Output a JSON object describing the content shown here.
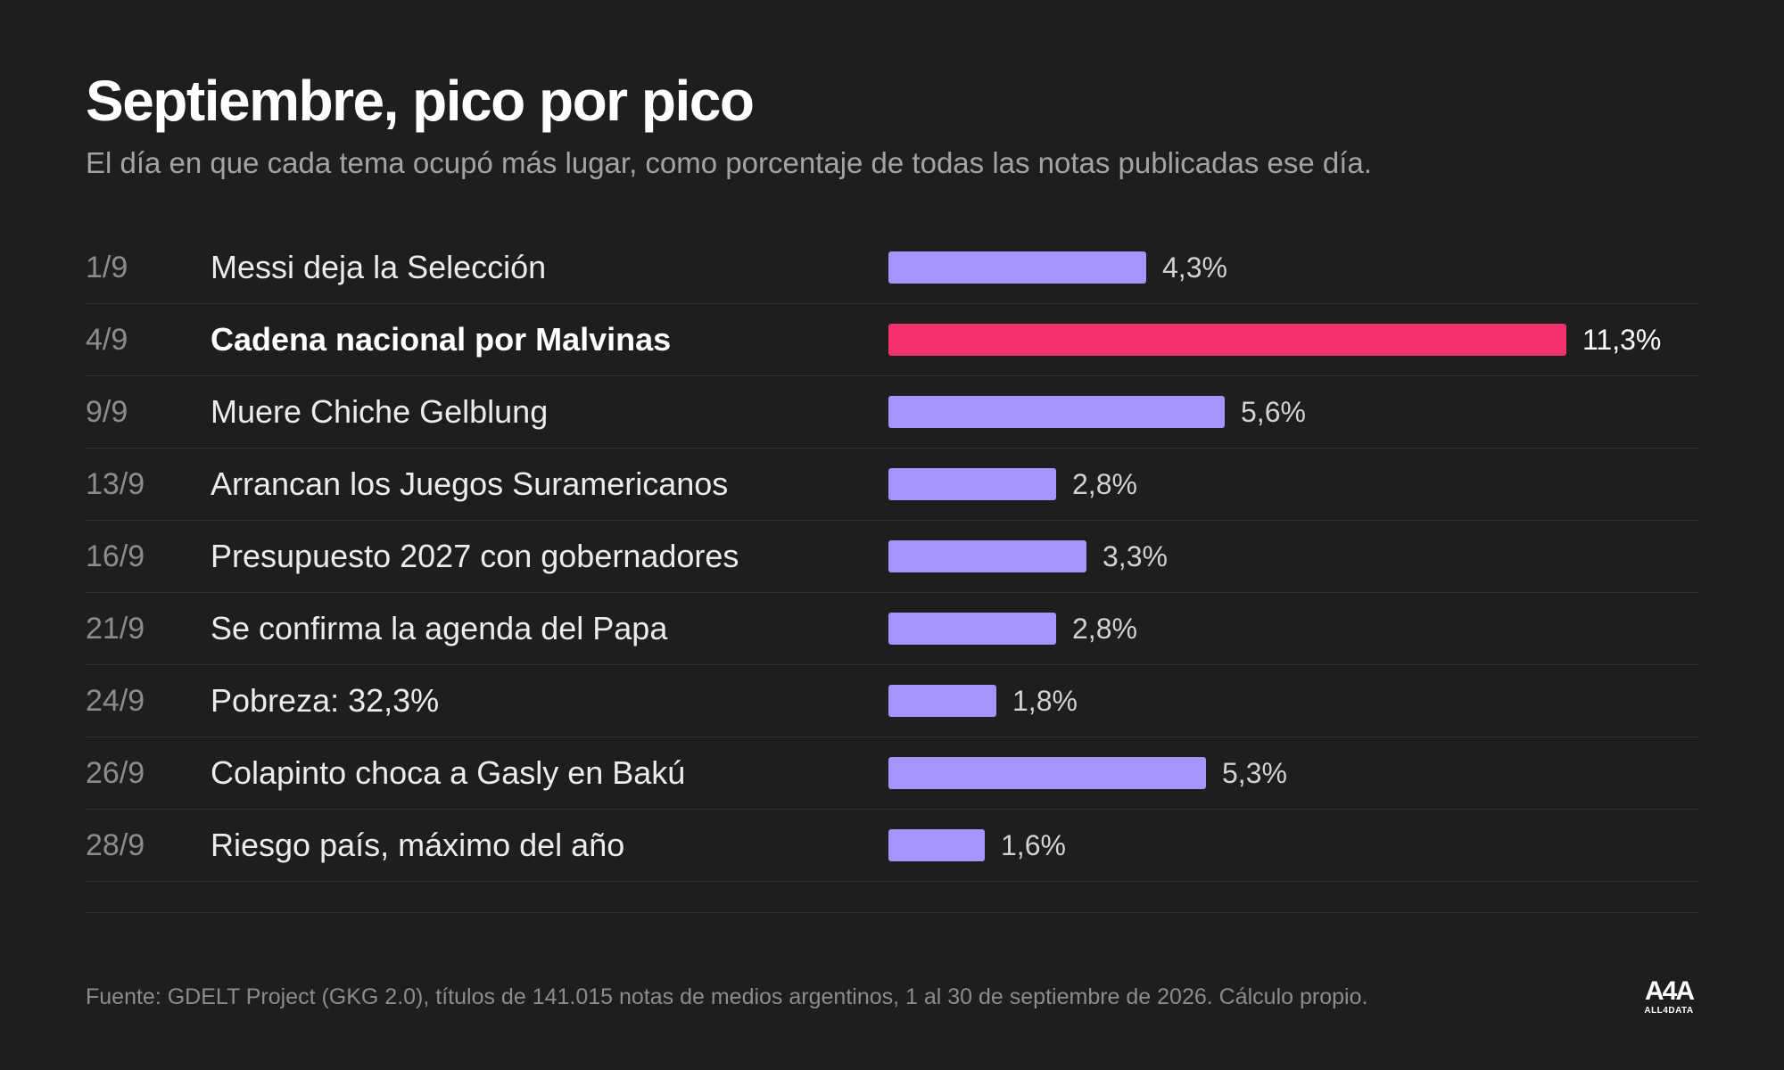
{
  "chart_data": {
    "type": "bar",
    "title": "Septiembre, pico por pico",
    "subtitle": "El día en que cada tema ocupó más lugar, como porcentaje de todas las notas publicadas ese día.",
    "dates": [
      "1/9",
      "4/9",
      "9/9",
      "13/9",
      "16/9",
      "21/9",
      "24/9",
      "26/9",
      "28/9"
    ],
    "categories": [
      "Messi deja la Selección",
      "Cadena nacional por Malvinas",
      "Muere Chiche Gelblung",
      "Arrancan los Juegos Suramericanos",
      "Presupuesto 2027 con gobernadores",
      "Se confirma la agenda del Papa",
      "Pobreza: 32,3%",
      "Colapinto choca a Gasly en Bakú",
      "Riesgo país, máximo del año"
    ],
    "values": [
      4.3,
      11.3,
      5.6,
      2.8,
      3.3,
      2.8,
      1.8,
      5.3,
      1.6
    ],
    "value_labels": [
      "4,3%",
      "11,3%",
      "5,6%",
      "2,8%",
      "3,3%",
      "2,8%",
      "1,8%",
      "5,3%",
      "1,6%"
    ],
    "highlight_index": 1,
    "colors": {
      "default": "#a594fb",
      "highlight": "#f4306d"
    },
    "grid": false
  },
  "footer": {
    "source": "Fuente: GDELT Project (GKG 2.0), títulos de 141.015 notas de medios argentinos, 1 al 30 de septiembre de 2026. Cálculo propio.",
    "logo_mark": "A4A",
    "logo_text": "ALL4DATA"
  }
}
